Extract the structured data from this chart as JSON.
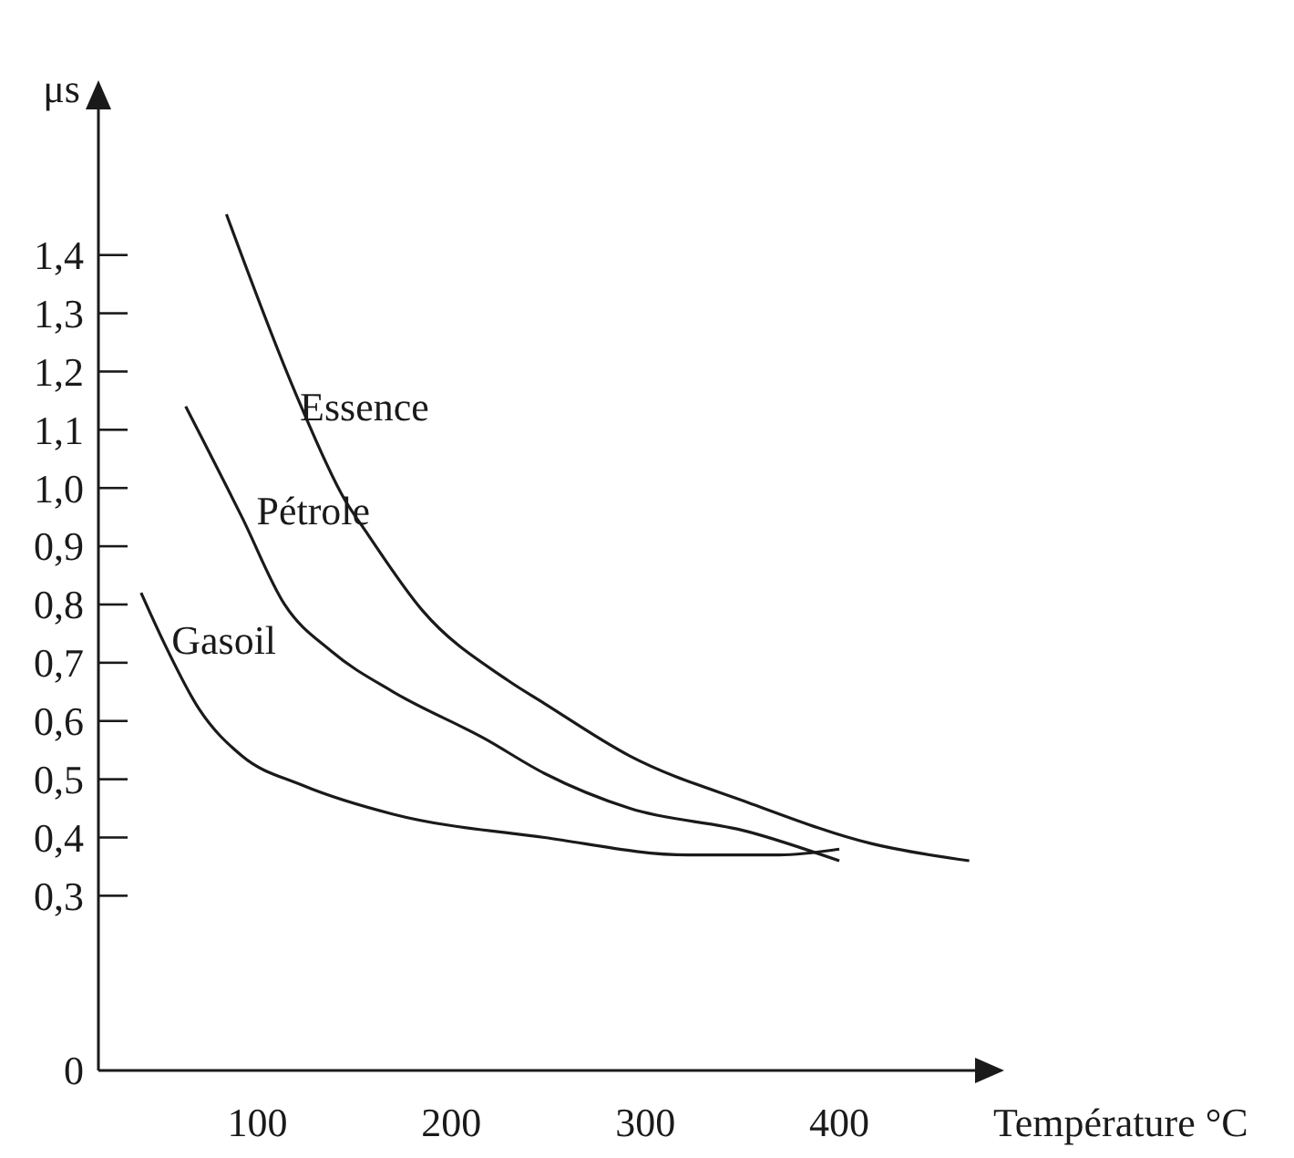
{
  "chart_data": {
    "type": "line",
    "xlabel": "Température °C",
    "ylabel": "μs",
    "xlim": [
      18,
      470
    ],
    "xticks": [
      100,
      200,
      300,
      400
    ],
    "ylim": [
      0,
      1.65
    ],
    "yticks": [
      {
        "value": 0,
        "label": "0"
      },
      {
        "value": 0.3,
        "label": "0,3"
      },
      {
        "value": 0.4,
        "label": "0,4"
      },
      {
        "value": 0.5,
        "label": "0,5"
      },
      {
        "value": 0.6,
        "label": "0,6"
      },
      {
        "value": 0.7,
        "label": "0,7"
      },
      {
        "value": 0.8,
        "label": "0,8"
      },
      {
        "value": 0.9,
        "label": "0,9"
      },
      {
        "value": 1.0,
        "label": "1,0"
      },
      {
        "value": 1.1,
        "label": "1,1"
      },
      {
        "value": 1.2,
        "label": "1,2"
      },
      {
        "value": 1.3,
        "label": "1,3"
      },
      {
        "value": 1.4,
        "label": "1,4"
      }
    ],
    "grid": false,
    "marker": "none",
    "line_style": "solid",
    "series": [
      {
        "name": "Essence",
        "color": "#1a1a1a",
        "x": [
          84,
          120,
          145,
          157,
          185,
          229,
          248,
          292,
          353,
          416,
          467
        ],
        "values": [
          1.47,
          1.16,
          0.98,
          0.92,
          0.79,
          0.67,
          0.63,
          0.54,
          0.46,
          0.39,
          0.36
        ]
      },
      {
        "name": "Pétrole",
        "color": "#1a1a1a",
        "x": [
          63,
          92,
          114,
          138,
          170,
          217,
          248,
          292,
          353,
          400
        ],
        "values": [
          1.14,
          0.95,
          0.8,
          0.72,
          0.65,
          0.57,
          0.51,
          0.45,
          0.41,
          0.36
        ]
      },
      {
        "name": "Gasoil",
        "color": "#1a1a1a",
        "x": [
          40,
          51,
          70,
          92,
          123,
          170,
          248,
          322,
          369,
          400
        ],
        "values": [
          0.82,
          0.74,
          0.62,
          0.54,
          0.49,
          0.44,
          0.4,
          0.37,
          0.37,
          0.38
        ]
      }
    ]
  }
}
